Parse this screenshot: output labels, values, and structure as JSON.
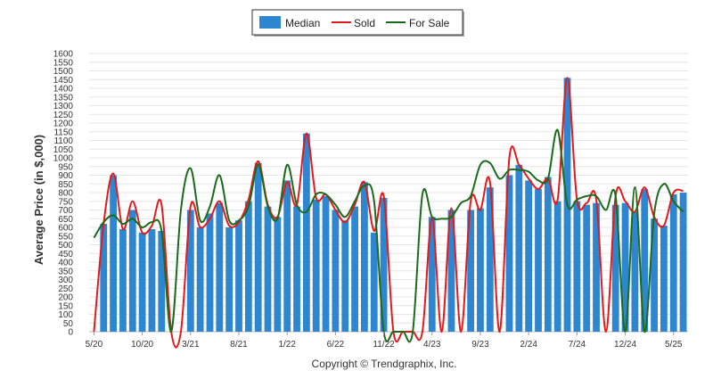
{
  "chart_data": {
    "type": "bar",
    "title": "",
    "ylabel": "Average Price (in $,000)",
    "xlabel": "",
    "ylim": [
      0,
      1600
    ],
    "yticks": [
      0,
      50,
      100,
      150,
      200,
      250,
      300,
      350,
      400,
      450,
      500,
      550,
      600,
      650,
      700,
      750,
      800,
      850,
      900,
      950,
      1000,
      1050,
      1100,
      1150,
      1200,
      1250,
      1300,
      1350,
      1400,
      1450,
      1500,
      1550,
      1600
    ],
    "xtick_labels": [
      {
        "index": 0,
        "label": "5/20"
      },
      {
        "index": 5,
        "label": "10/20"
      },
      {
        "index": 10,
        "label": "3/21"
      },
      {
        "index": 15,
        "label": "8/21"
      },
      {
        "index": 20,
        "label": "1/22"
      },
      {
        "index": 25,
        "label": "6/22"
      },
      {
        "index": 30,
        "label": "11/22"
      },
      {
        "index": 35,
        "label": "4/23"
      },
      {
        "index": 40,
        "label": "9/23"
      },
      {
        "index": 45,
        "label": "2/24"
      },
      {
        "index": 50,
        "label": "7/24"
      },
      {
        "index": 55,
        "label": "12/24"
      },
      {
        "index": 60,
        "label": "5/25"
      }
    ],
    "legend": {
      "position": "top-center",
      "entries": [
        "Median",
        "Sold",
        "For Sale"
      ]
    },
    "grid": true,
    "series": [
      {
        "name": "Median",
        "kind": "bar",
        "color": "#2e86d1",
        "values": [
          0,
          620,
          900,
          590,
          700,
          570,
          590,
          580,
          0,
          0,
          700,
          600,
          680,
          740,
          600,
          640,
          750,
          970,
          720,
          660,
          870,
          720,
          1140,
          760,
          780,
          700,
          640,
          720,
          860,
          570,
          770,
          0,
          0,
          0,
          0,
          660,
          0,
          700,
          0,
          700,
          710,
          830,
          0,
          900,
          960,
          870,
          820,
          890,
          750,
          1460,
          750,
          730,
          740,
          0,
          730,
          740,
          690,
          820,
          650,
          610,
          790,
          800
        ]
      },
      {
        "name": "Sold",
        "kind": "line",
        "color": "#e31a1c",
        "values": [
          0,
          620,
          910,
          590,
          750,
          570,
          610,
          730,
          0,
          0,
          720,
          600,
          650,
          750,
          610,
          630,
          760,
          980,
          730,
          660,
          860,
          730,
          1140,
          770,
          790,
          700,
          630,
          730,
          860,
          580,
          780,
          0,
          0,
          0,
          0,
          650,
          0,
          710,
          0,
          750,
          700,
          860,
          0,
          1000,
          960,
          880,
          820,
          880,
          760,
          1460,
          760,
          740,
          760,
          0,
          780,
          750,
          690,
          830,
          660,
          610,
          800,
          810
        ]
      },
      {
        "name": "For Sale",
        "kind": "line",
        "color": "#1a6b1a",
        "values": [
          540,
          630,
          670,
          620,
          650,
          600,
          630,
          580,
          0,
          700,
          940,
          640,
          720,
          900,
          640,
          640,
          720,
          960,
          720,
          650,
          960,
          730,
          690,
          790,
          790,
          730,
          660,
          750,
          840,
          750,
          0,
          0,
          0,
          0,
          790,
          660,
          650,
          660,
          740,
          780,
          960,
          970,
          880,
          930,
          930,
          920,
          870,
          880,
          1160,
          730,
          760,
          780,
          780,
          700,
          780,
          0,
          830,
          0,
          680,
          850,
          750,
          690
        ]
      }
    ]
  },
  "copyright": "Copyright © Trendgraphix, Inc."
}
